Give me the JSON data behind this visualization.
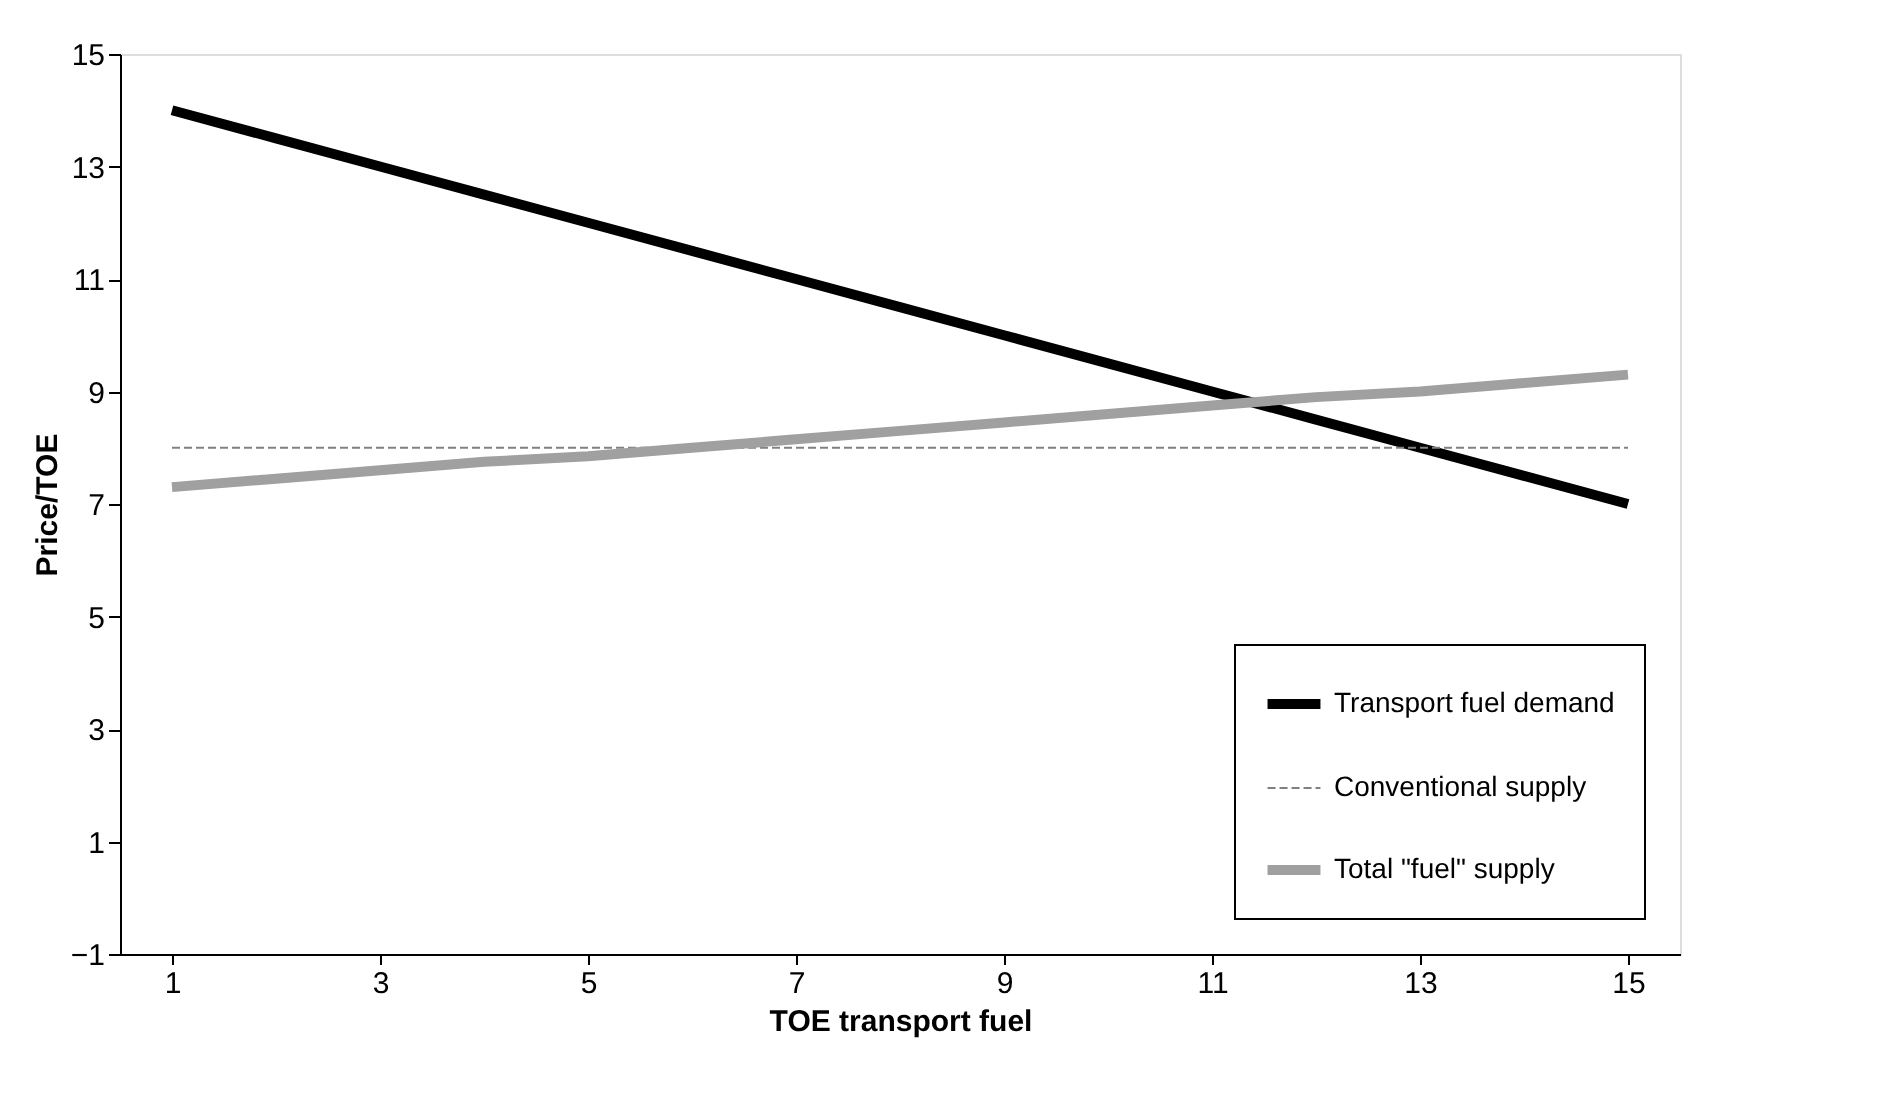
{
  "chart_data": {
    "type": "line",
    "xlabel": "TOE transport fuel",
    "ylabel": "Price/TOE",
    "x": [
      1,
      2,
      3,
      4,
      5,
      6,
      7,
      8,
      9,
      10,
      11,
      12,
      13,
      14,
      15
    ],
    "series": [
      {
        "name": "Transport fuel demand",
        "color": "#000000",
        "line_style": "solid",
        "values": [
          14,
          13.5,
          13,
          12.5,
          12,
          11.5,
          11,
          10.5,
          10,
          9.5,
          9,
          8.5,
          8,
          7.5,
          7
        ]
      },
      {
        "name": "Conventional supply",
        "color": "#808080",
        "line_style": "dashed",
        "values": [
          8,
          8,
          8,
          8,
          8,
          8,
          8,
          8,
          8,
          8,
          8,
          8,
          8,
          8,
          8
        ]
      },
      {
        "name": "Total \"fuel\" supply",
        "color": "#a0a0a0",
        "line_style": "solid",
        "values": [
          7.3,
          7.45,
          7.6,
          7.75,
          7.85,
          8.0,
          8.15,
          8.3,
          8.45,
          8.6,
          8.75,
          8.9,
          9.0,
          9.15,
          9.3
        ]
      }
    ],
    "xlim": [
      0.5,
      15.5
    ],
    "xticks": [
      1,
      3,
      5,
      7,
      9,
      11,
      13,
      15
    ],
    "ylim": [
      -1,
      15
    ],
    "yticks": [
      -1,
      1,
      3,
      5,
      7,
      9,
      11,
      13,
      15
    ],
    "grid": false,
    "legend": "bottom right",
    "marker": "none"
  }
}
